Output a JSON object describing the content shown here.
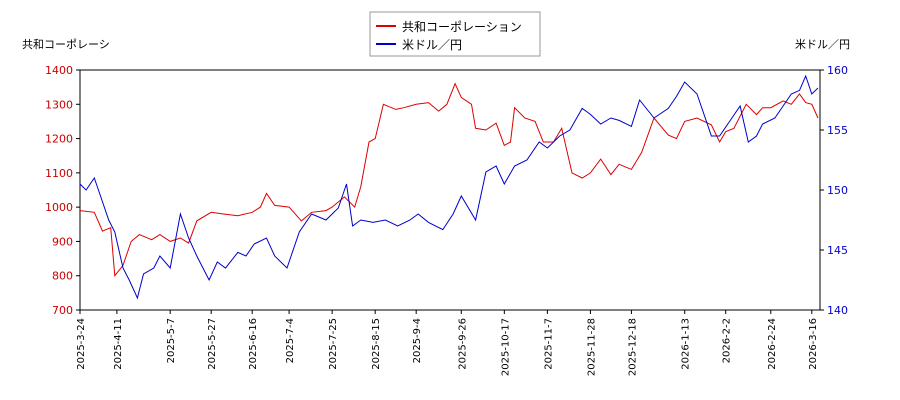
{
  "chart_data": {
    "type": "line",
    "ylabel": "共和コーポレーシ",
    "y2label": "米ドル／円",
    "xlim": [
      "2025-3-24",
      "2026-3-20"
    ],
    "xticks": [
      "2025-3-24",
      "2025-4-11",
      "2025-5-7",
      "2025-5-27",
      "2025-6-16",
      "2025-7-4",
      "2025-7-25",
      "2025-8-15",
      "2025-9-4",
      "2025-9-26",
      "2025-10-17",
      "2025-11-7",
      "2025-11-28",
      "2025-12-18",
      "2026-1-13",
      "2026-2-2",
      "2026-2-24",
      "2026-3-16"
    ],
    "ylim": [
      700,
      1400
    ],
    "yticks": [
      700,
      800,
      900,
      1000,
      1100,
      1200,
      1300,
      1400
    ],
    "y2lim": [
      140,
      160
    ],
    "y2ticks": [
      140,
      145,
      150,
      155,
      160
    ],
    "grid": false,
    "series": [
      {
        "name": "共和コーポレーション",
        "color": "#dd0000",
        "axis": "y",
        "x": [
          "2025-3-24",
          "2025-3-31",
          "2025-4-4",
          "2025-4-8",
          "2025-4-10",
          "2025-4-14",
          "2025-4-18",
          "2025-4-22",
          "2025-4-28",
          "2025-5-2",
          "2025-5-7",
          "2025-5-12",
          "2025-5-16",
          "2025-5-20",
          "2025-5-27",
          "2025-6-2",
          "2025-6-9",
          "2025-6-16",
          "2025-6-20",
          "2025-6-23",
          "2025-6-27",
          "2025-7-4",
          "2025-7-10",
          "2025-7-15",
          "2025-7-22",
          "2025-7-25",
          "2025-7-31",
          "2025-8-5",
          "2025-8-8",
          "2025-8-12",
          "2025-8-15",
          "2025-8-19",
          "2025-8-25",
          "2025-8-29",
          "2025-9-4",
          "2025-9-10",
          "2025-9-15",
          "2025-9-19",
          "2025-9-23",
          "2025-9-26",
          "2025-10-1",
          "2025-10-3",
          "2025-10-8",
          "2025-10-13",
          "2025-10-17",
          "2025-10-20",
          "2025-10-22",
          "2025-10-27",
          "2025-11-1",
          "2025-11-5",
          "2025-11-10",
          "2025-11-14",
          "2025-11-19",
          "2025-11-24",
          "2025-11-28",
          "2025-12-3",
          "2025-12-8",
          "2025-12-12",
          "2025-12-18",
          "2025-12-23",
          "2025-12-29",
          "2026-1-5",
          "2026-1-9",
          "2026-1-13",
          "2026-1-19",
          "2026-1-26",
          "2026-1-30",
          "2026-2-2",
          "2026-2-6",
          "2026-2-12",
          "2026-2-17",
          "2026-2-20",
          "2026-2-24",
          "2026-3-2",
          "2026-3-6",
          "2026-3-10",
          "2026-3-13",
          "2026-3-16",
          "2026-3-19"
        ],
        "values": [
          990,
          985,
          930,
          940,
          800,
          830,
          900,
          920,
          905,
          920,
          900,
          910,
          895,
          960,
          985,
          980,
          975,
          985,
          1000,
          1040,
          1005,
          1000,
          960,
          985,
          990,
          1000,
          1030,
          1000,
          1060,
          1190,
          1200,
          1300,
          1285,
          1290,
          1300,
          1305,
          1280,
          1300,
          1360,
          1320,
          1300,
          1230,
          1225,
          1245,
          1180,
          1190,
          1290,
          1260,
          1250,
          1190,
          1190,
          1230,
          1100,
          1085,
          1100,
          1140,
          1095,
          1125,
          1110,
          1160,
          1260,
          1210,
          1200,
          1250,
          1260,
          1240,
          1190,
          1220,
          1230,
          1300,
          1270,
          1290,
          1290,
          1310,
          1300,
          1330,
          1305,
          1300,
          1260
        ]
      },
      {
        "name": "米ドル／円",
        "color": "#0000cc",
        "axis": "y2",
        "x": [
          "2025-3-24",
          "2025-3-27",
          "2025-3-31",
          "2025-4-3",
          "2025-4-7",
          "2025-4-10",
          "2025-4-14",
          "2025-4-17",
          "2025-4-21",
          "2025-4-24",
          "2025-4-29",
          "2025-5-2",
          "2025-5-7",
          "2025-5-12",
          "2025-5-16",
          "2025-5-20",
          "2025-5-26",
          "2025-5-30",
          "2025-6-3",
          "2025-6-9",
          "2025-6-13",
          "2025-6-17",
          "2025-6-23",
          "2025-6-27",
          "2025-7-3",
          "2025-7-9",
          "2025-7-15",
          "2025-7-22",
          "2025-7-28",
          "2025-8-1",
          "2025-8-4",
          "2025-8-8",
          "2025-8-14",
          "2025-8-20",
          "2025-8-26",
          "2025-9-1",
          "2025-9-5",
          "2025-9-10",
          "2025-9-17",
          "2025-9-22",
          "2025-9-26",
          "2025-10-3",
          "2025-10-8",
          "2025-10-13",
          "2025-10-17",
          "2025-10-22",
          "2025-10-28",
          "2025-11-3",
          "2025-11-7",
          "2025-11-13",
          "2025-11-18",
          "2025-11-24",
          "2025-11-28",
          "2025-12-3",
          "2025-12-8",
          "2025-12-12",
          "2025-12-18",
          "2025-12-22",
          "2025-12-29",
          "2026-1-5",
          "2026-1-9",
          "2026-1-13",
          "2026-1-19",
          "2026-1-26",
          "2026-1-30",
          "2026-2-3",
          "2026-2-9",
          "2026-2-13",
          "2026-2-17",
          "2026-2-20",
          "2026-2-26",
          "2026-3-2",
          "2026-3-6",
          "2026-3-10",
          "2026-3-13",
          "2026-3-16",
          "2026-3-19"
        ],
        "values": [
          150.5,
          150,
          151,
          149.5,
          147.5,
          146.5,
          143.5,
          142.5,
          141,
          143,
          143.5,
          144.5,
          143.5,
          148,
          146,
          144.5,
          142.5,
          144,
          143.5,
          144.8,
          144.5,
          145.5,
          146,
          144.5,
          143.5,
          146.5,
          148,
          147.5,
          148.5,
          150.5,
          147,
          147.5,
          147.3,
          147.5,
          147,
          147.5,
          148,
          147.3,
          146.7,
          148,
          149.5,
          147.5,
          151.5,
          152,
          150.5,
          152,
          152.5,
          154,
          153.5,
          154.5,
          155,
          156.8,
          156.3,
          155.5,
          156,
          155.8,
          155.3,
          157.5,
          156,
          156.8,
          157.8,
          159,
          158,
          154.5,
          154.5,
          155.5,
          157,
          154,
          154.5,
          155.5,
          156,
          157,
          158,
          158.3,
          159.5,
          158,
          158.5
        ]
      }
    ]
  }
}
